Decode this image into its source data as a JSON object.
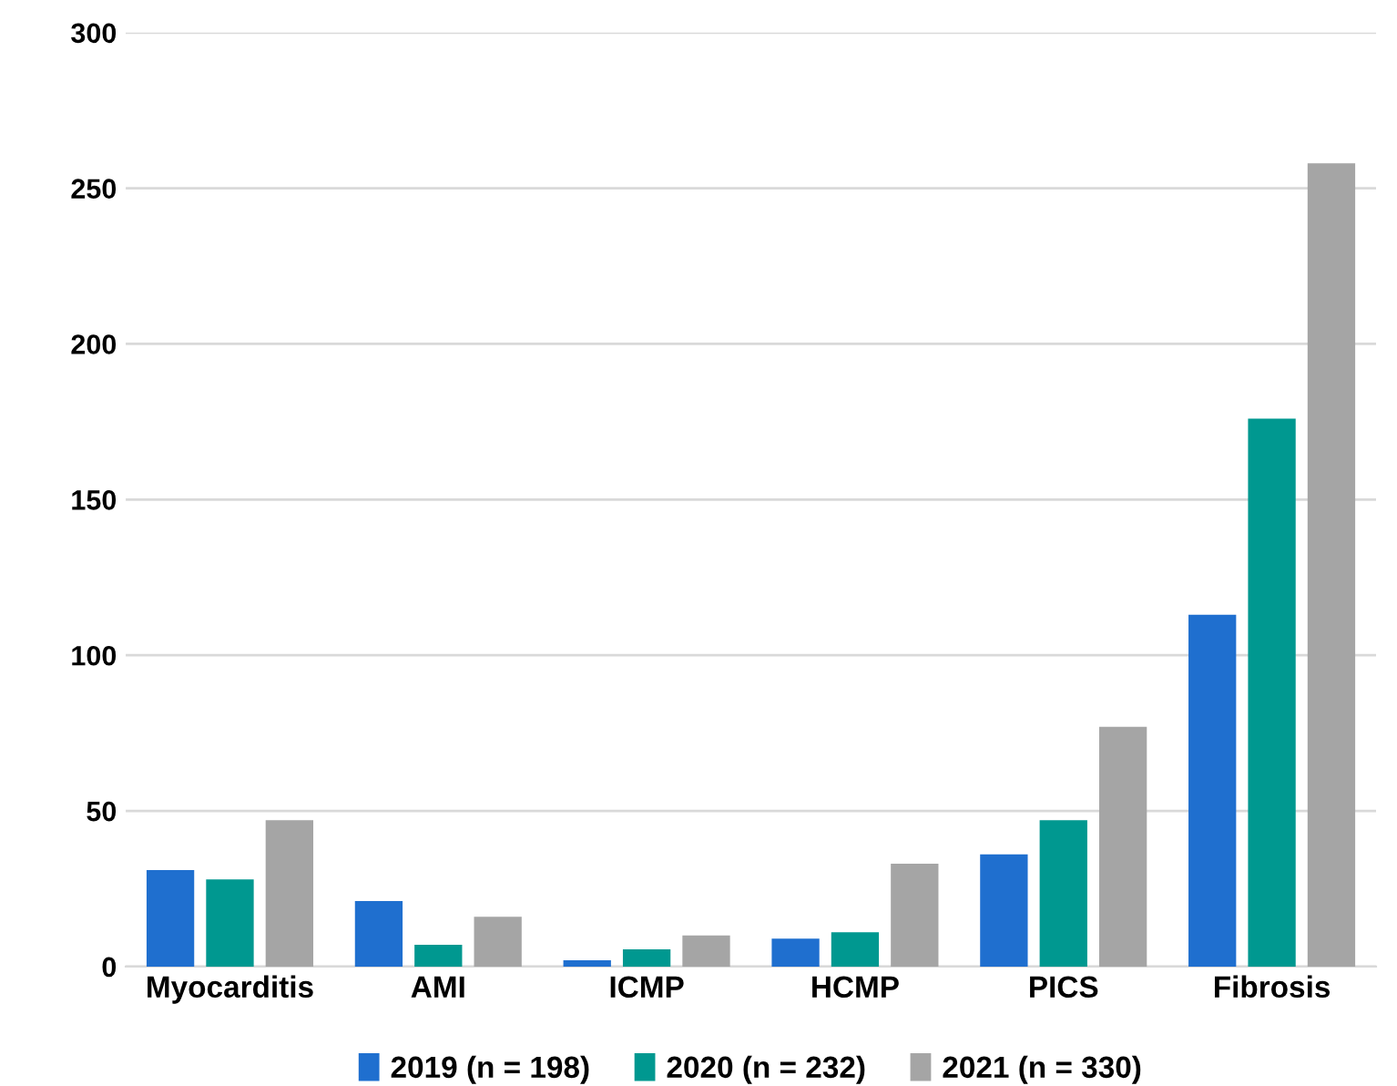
{
  "chart_data": {
    "type": "bar",
    "categories": [
      "Myocarditis",
      "AMI",
      "ICMP",
      "HCMP",
      "PICS",
      "Fibrosis"
    ],
    "series": [
      {
        "name": "2019 (n = 198)",
        "color": "#1f6fcf",
        "values": [
          31,
          21,
          2,
          9,
          36,
          113
        ]
      },
      {
        "name": "2020 (n = 232)",
        "color": "#009890",
        "values": [
          28,
          7,
          5.5,
          11,
          47,
          176
        ]
      },
      {
        "name": "2021 (n = 330)",
        "color": "#a5a5a5",
        "values": [
          47,
          16,
          10,
          33,
          77,
          258
        ]
      }
    ],
    "ylim": [
      0,
      300
    ],
    "yticks": [
      0,
      50,
      100,
      150,
      200,
      250,
      300
    ],
    "grid": "y",
    "legend": "bottom"
  }
}
